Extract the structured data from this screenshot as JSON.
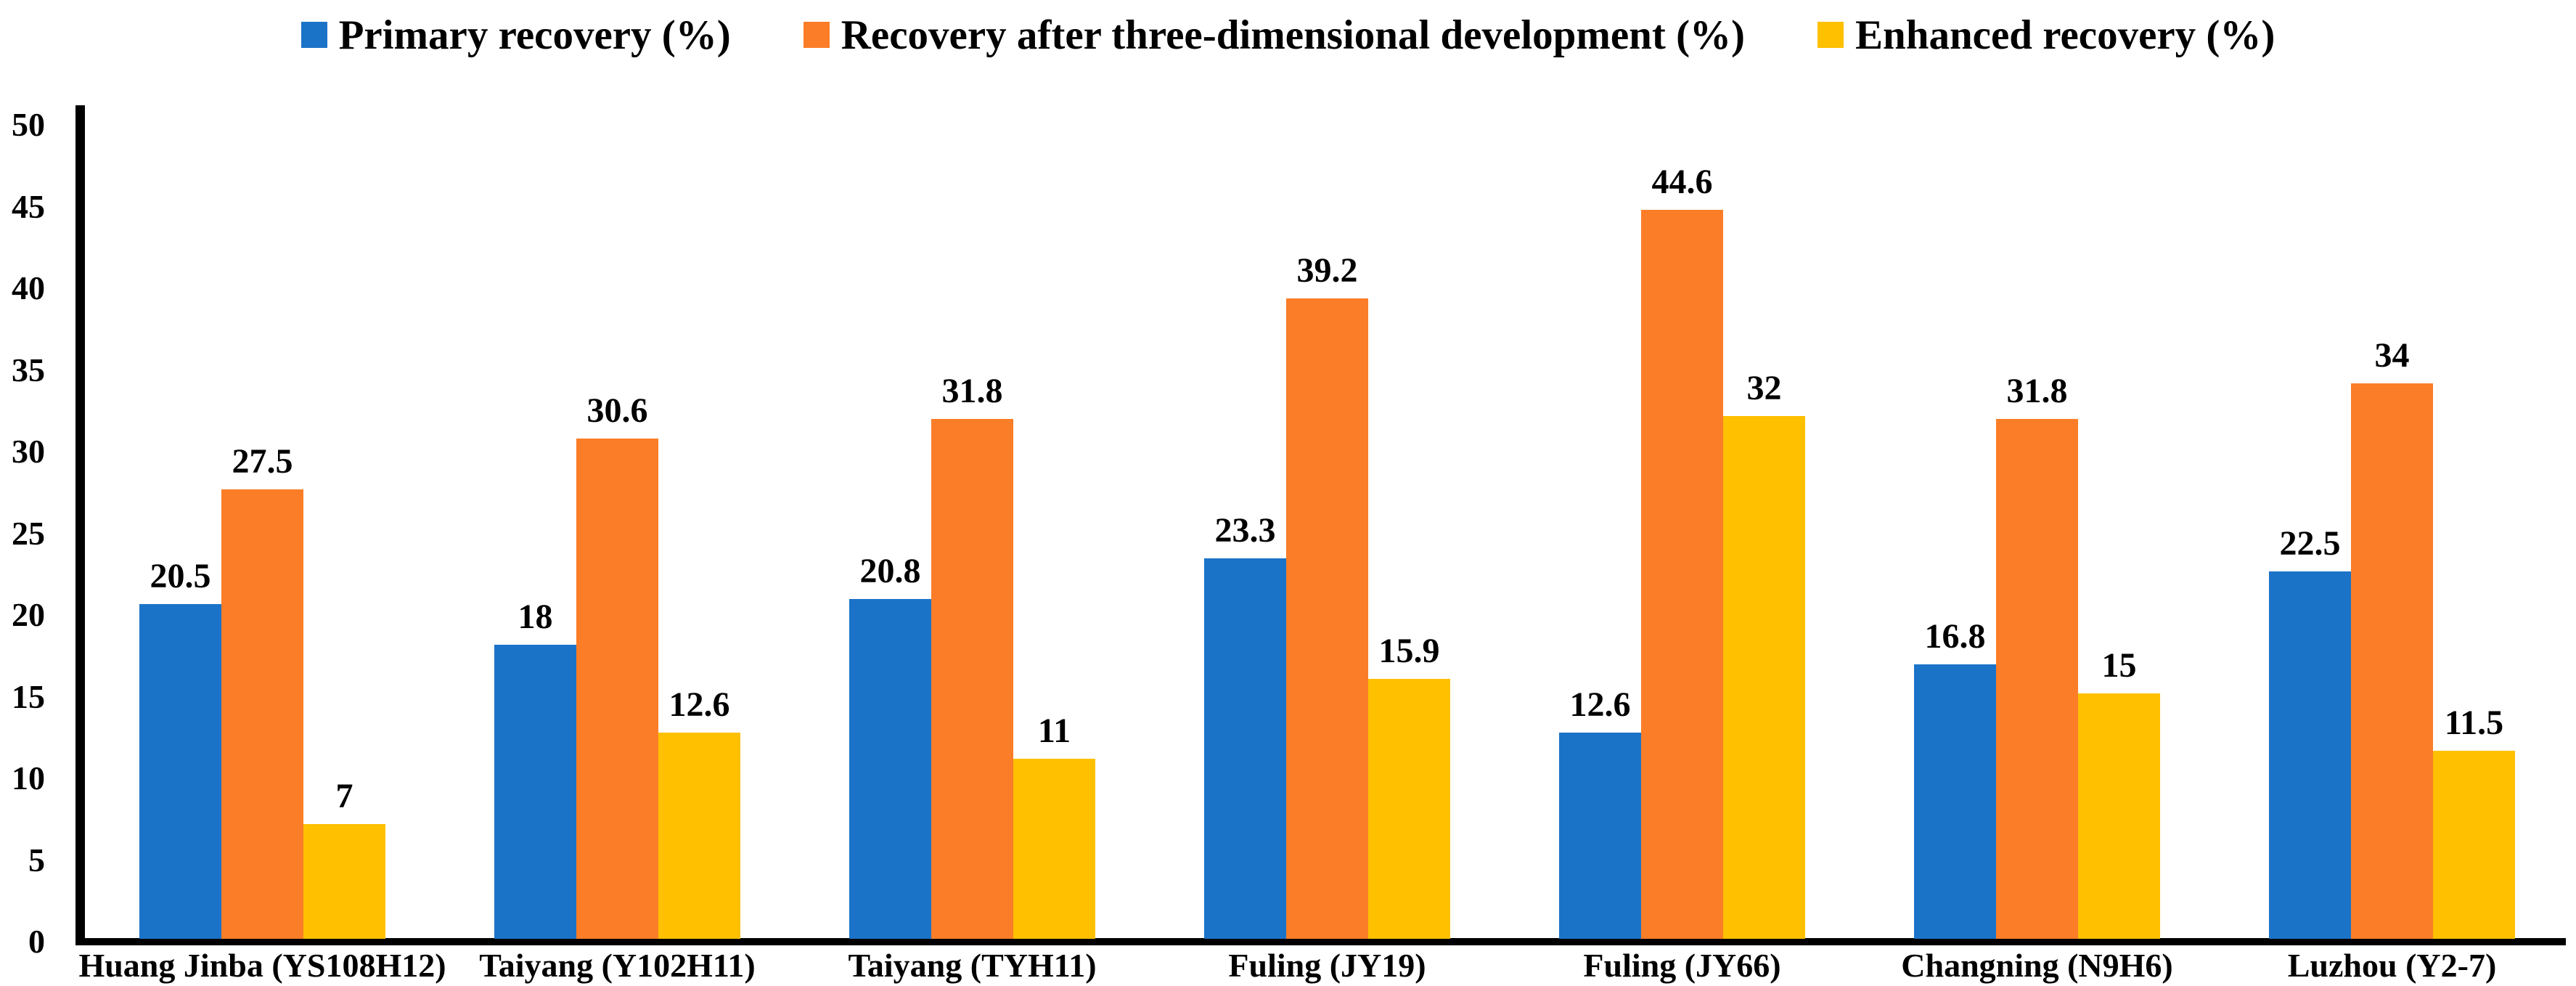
{
  "legend": {
    "items": [
      {
        "label": "Primary recovery (%)",
        "color": "#1B73C8"
      },
      {
        "label": "Recovery after three-dimensional development (%)",
        "color": "#FB7D27"
      },
      {
        "label": "Enhanced recovery (%)",
        "color": "#FFC000"
      }
    ]
  },
  "chart_data": {
    "type": "bar",
    "categories": [
      "Huang Jinba (YS108H12)",
      "Taiyang (Y102H11)",
      "Taiyang (TYH11)",
      "Fuling (JY19)",
      "Fuling (JY66)",
      "Changning (N9H6)",
      "Luzhou (Y2-7)"
    ],
    "series": [
      {
        "name": "Primary recovery (%)",
        "color": "#1B73C8",
        "values": [
          20.5,
          18,
          20.8,
          23.3,
          12.6,
          16.8,
          22.5
        ],
        "labels": [
          "20.5",
          "18",
          "20.8",
          "23.3",
          "12.6",
          "16.8",
          "22.5"
        ]
      },
      {
        "name": "Recovery after three-dimensional development (%)",
        "color": "#FB7D27",
        "values": [
          27.5,
          30.6,
          31.8,
          39.2,
          44.6,
          31.8,
          34
        ],
        "labels": [
          "27.5",
          "30.6",
          "31.8",
          "39.2",
          "44.6",
          "31.8",
          "34"
        ]
      },
      {
        "name": "Enhanced recovery (%)",
        "color": "#FFC000",
        "values": [
          7,
          12.6,
          11,
          15.9,
          32,
          15,
          11.5
        ],
        "labels": [
          "7",
          "12.6",
          "11",
          "15.9",
          "32",
          "15",
          "11.5"
        ]
      }
    ],
    "title": "",
    "xlabel": "",
    "ylabel": "",
    "ylim": [
      0,
      50
    ],
    "yticks": [
      0,
      5,
      10,
      15,
      20,
      25,
      30,
      35,
      40,
      45,
      50
    ],
    "grid": false,
    "legend_position": "top",
    "value_labels": true
  }
}
